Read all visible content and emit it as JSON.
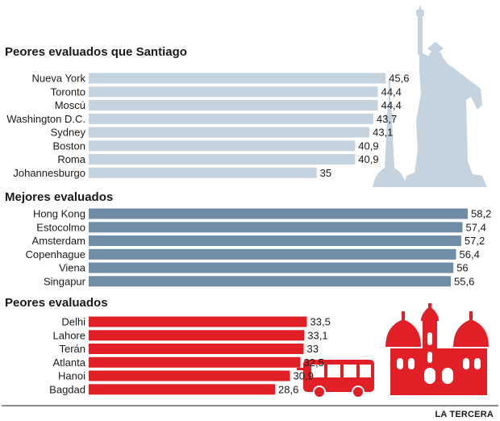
{
  "chart_data": [
    {
      "type": "bar",
      "orientation": "horizontal",
      "title": "Peores evaluados que Santiago",
      "categories": [
        "Nueva York",
        "Toronto",
        "Moscú",
        "Washington D.C.",
        "Sydney",
        "Boston",
        "Roma",
        "Johannesburgo"
      ],
      "values": [
        45.6,
        44.4,
        44.4,
        43.7,
        43.1,
        40.9,
        40.9,
        35
      ],
      "value_labels": [
        "45,6",
        "44,4",
        "44,4",
        "43,7",
        "43,1",
        "40,9",
        "40,9",
        "35"
      ],
      "color": "#c5d3df"
    },
    {
      "type": "bar",
      "orientation": "horizontal",
      "title": "Mejores evaluados",
      "categories": [
        "Hong Kong",
        "Estocolmo",
        "Amsterdam",
        "Copenhague",
        "Viena",
        "Singapur"
      ],
      "values": [
        58.2,
        57.4,
        57.2,
        56.4,
        56,
        55.6
      ],
      "value_labels": [
        "58,2",
        "57,4",
        "57,2",
        "56,4",
        "56",
        "55,6"
      ],
      "color": "#6f8da6"
    },
    {
      "type": "bar",
      "orientation": "horizontal",
      "title": "Peores evaluados",
      "categories": [
        "Delhi",
        "Lahore",
        "Terán",
        "Atlanta",
        "Hanoi",
        "Bagdad"
      ],
      "values": [
        33.5,
        33.1,
        33,
        32.5,
        30.9,
        28.6
      ],
      "value_labels": [
        "33,5",
        "33,1",
        "33",
        "32,5",
        "30,9",
        "28,6"
      ],
      "color": "#e01f26"
    }
  ],
  "footer": {
    "source": "LA TERCERA"
  },
  "colors": {
    "statue": "#c5d3df",
    "building": "#e01f26",
    "bus": "#e01f26",
    "rule": "#1a1a1a"
  },
  "icons": [
    "statue-of-liberty-icon",
    "tv-tower-icon",
    "bus-icon",
    "palace-icon"
  ]
}
